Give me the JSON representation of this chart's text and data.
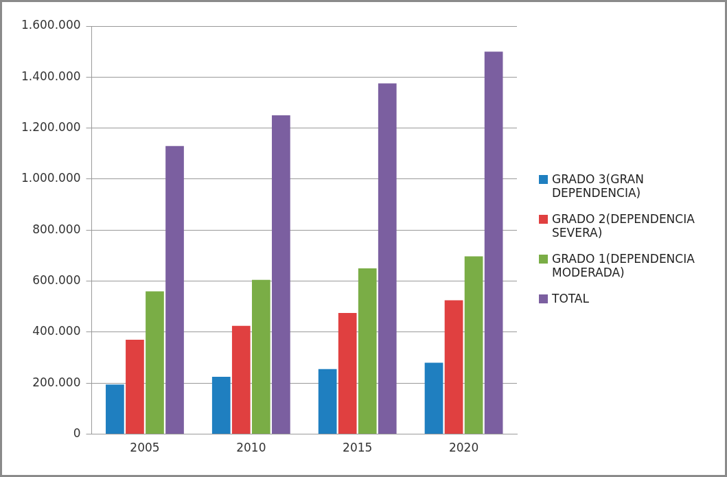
{
  "chart_data": {
    "type": "bar",
    "categories": [
      "2005",
      "2010",
      "2015",
      "2020"
    ],
    "series": [
      {
        "name": "GRADO 3(GRAN DEPENDENCIA)",
        "color": "#1f7fc0",
        "values": [
          195000,
          225000,
          255000,
          280000
        ]
      },
      {
        "name": "GRADO 2(DEPENDENCIA SEVERA)",
        "color": "#e04040",
        "values": [
          370000,
          425000,
          475000,
          525000
        ]
      },
      {
        "name": "GRADO 1(DEPENDENCIA MODERADA)",
        "color": "#7aad46",
        "values": [
          560000,
          605000,
          650000,
          697000
        ]
      },
      {
        "name": "TOTAL",
        "color": "#7b5fa0",
        "values": [
          1130000,
          1250000,
          1375000,
          1500000
        ]
      }
    ],
    "ylim": [
      0,
      1600000
    ],
    "yticks": [
      {
        "value": 0,
        "label": "0"
      },
      {
        "value": 200000,
        "label": "200.000"
      },
      {
        "value": 400000,
        "label": "400.000"
      },
      {
        "value": 600000,
        "label": "600.000"
      },
      {
        "value": 800000,
        "label": "800.000"
      },
      {
        "value": 1000000,
        "label": "1.000.000"
      },
      {
        "value": 1200000,
        "label": "1.200.000"
      },
      {
        "value": 1400000,
        "label": "1.400.000"
      },
      {
        "value": 1600000,
        "label": "1.600.000"
      }
    ],
    "grid": "y",
    "legend": "right"
  }
}
